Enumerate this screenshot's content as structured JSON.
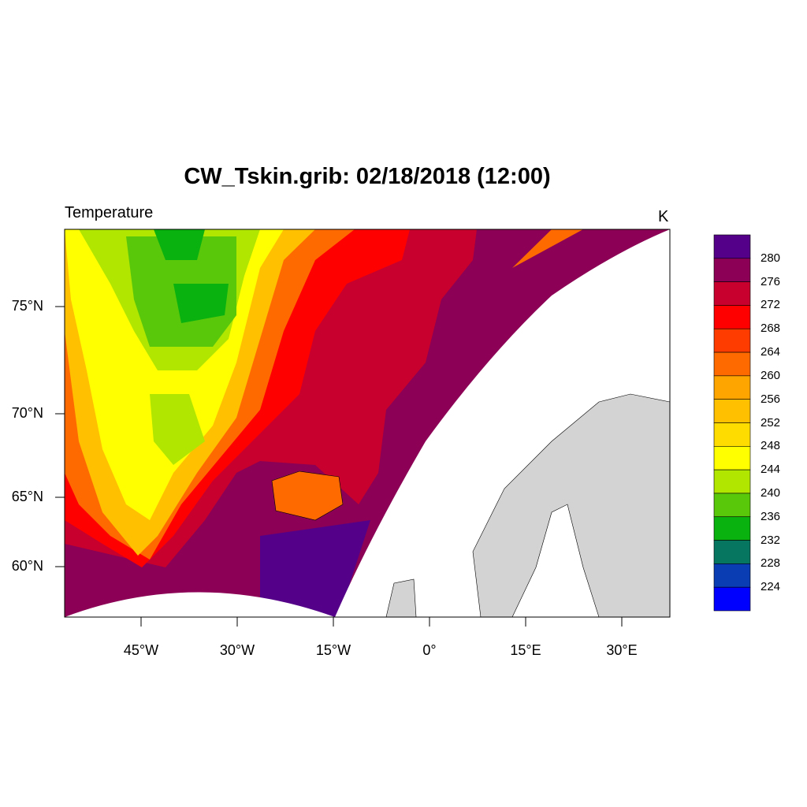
{
  "title": "CW_Tskin.grib: 02/18/2018 (12:00)",
  "left_string": "Temperature",
  "right_string": "K",
  "lat_labels": [
    "75°N",
    "70°N",
    "65°N",
    "60°N"
  ],
  "lon_labels": [
    "45°W",
    "30°W",
    "15°W",
    "0°",
    "15°E",
    "30°E"
  ],
  "colorbar": {
    "labels": [
      "280",
      "276",
      "272",
      "268",
      "264",
      "260",
      "256",
      "252",
      "248",
      "244",
      "240",
      "236",
      "232",
      "228",
      "224"
    ],
    "colors_top_to_bottom": [
      "#550088",
      "#8c0055",
      "#c8002d",
      "#ff0000",
      "#ff3c00",
      "#ff6a00",
      "#ffa500",
      "#ffc000",
      "#ffdc00",
      "#ffff00",
      "#b0e600",
      "#5ac80a",
      "#0ab20f",
      "#067661",
      "#0a3cb4",
      "#0000ff"
    ]
  },
  "land_color": "#d3d3d3"
}
